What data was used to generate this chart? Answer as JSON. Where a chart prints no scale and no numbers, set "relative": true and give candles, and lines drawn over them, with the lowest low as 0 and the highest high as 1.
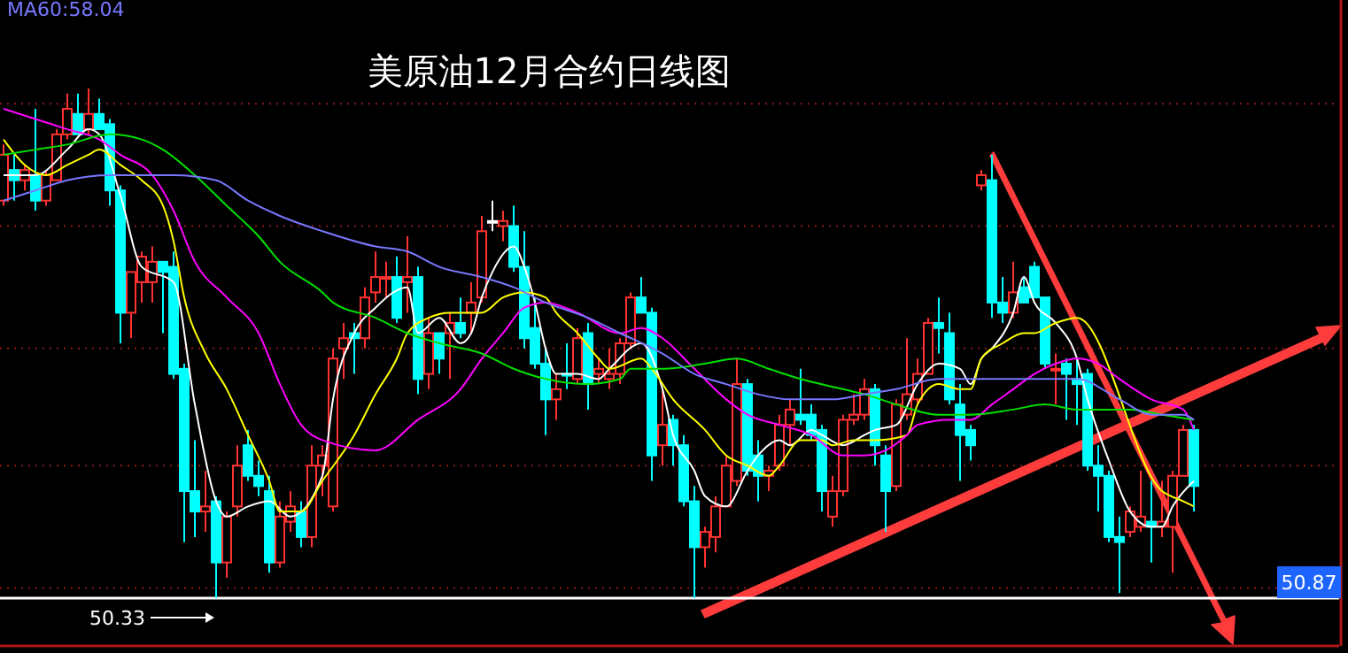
{
  "chart_data": {
    "type": "candlestick",
    "title": "美原油12月合约日线图",
    "relative": true,
    "ref_lines": [
      {
        "axis": "y",
        "value": 0.97,
        "color": "#8b1a1a",
        "line_style": "dotted"
      },
      {
        "axis": "y",
        "value": 0.73,
        "color": "#8b1a1a",
        "line_style": "dotted"
      },
      {
        "axis": "y",
        "value": 0.49,
        "color": "#8b1a1a",
        "line_style": "dotted"
      },
      {
        "axis": "y",
        "value": 0.26,
        "color": "#8b1a1a",
        "line_style": "dotted"
      },
      {
        "axis": "y",
        "value": 0.02,
        "color": "#8b1a1a",
        "line_style": "dotted"
      }
    ],
    "annotations": [
      "MA60:58.04",
      "50.33",
      "50.87"
    ],
    "categories": [
      null,
      null,
      null,
      null,
      null,
      null,
      null,
      null,
      null,
      null,
      null,
      null,
      null,
      null,
      null,
      null,
      null,
      null,
      null,
      null,
      null,
      null,
      null,
      null,
      null,
      null,
      null,
      null,
      null,
      null,
      null,
      null,
      null,
      null,
      null,
      null,
      null,
      null,
      null,
      null,
      null,
      null,
      null,
      null,
      null,
      null,
      null,
      null,
      null,
      null,
      null,
      null,
      null,
      null,
      null,
      null,
      null,
      null,
      null,
      null,
      null,
      null,
      null,
      null,
      null,
      null,
      null,
      null,
      null,
      null,
      null,
      null,
      null,
      null,
      null,
      null,
      null,
      null,
      null,
      null,
      null,
      null,
      null,
      null,
      null,
      null,
      null,
      null,
      null,
      null,
      null,
      null,
      null,
      null,
      null,
      null,
      null,
      null,
      null,
      null,
      null,
      null,
      null,
      null,
      null,
      null,
      null,
      null,
      null,
      null,
      null,
      null,
      null
    ],
    "ohlc": [
      [
        0.78,
        0.89,
        0.77,
        0.87
      ],
      [
        0.84,
        0.87,
        0.78,
        0.82
      ],
      [
        0.82,
        0.85,
        0.8,
        0.84
      ],
      [
        0.83,
        0.96,
        0.76,
        0.78
      ],
      [
        0.78,
        0.84,
        0.77,
        0.83
      ],
      [
        0.82,
        0.92,
        0.82,
        0.91
      ],
      [
        0.91,
        0.99,
        0.9,
        0.96
      ],
      [
        0.95,
        0.99,
        0.91,
        0.91
      ],
      [
        0.92,
        1.0,
        0.91,
        0.95
      ],
      [
        0.95,
        0.98,
        0.92,
        0.92
      ],
      [
        0.93,
        0.94,
        0.77,
        0.8
      ],
      [
        0.8,
        0.81,
        0.5,
        0.56
      ],
      [
        0.56,
        0.64,
        0.51,
        0.64
      ],
      [
        0.62,
        0.68,
        0.58,
        0.67
      ],
      [
        0.62,
        0.69,
        0.58,
        0.66
      ],
      [
        0.66,
        0.66,
        0.52,
        0.64
      ],
      [
        0.65,
        0.68,
        0.43,
        0.44
      ],
      [
        0.45,
        0.46,
        0.11,
        0.21
      ],
      [
        0.21,
        0.31,
        0.12,
        0.17
      ],
      [
        0.17,
        0.25,
        0.13,
        0.18
      ],
      [
        0.19,
        0.2,
        0.0,
        0.07
      ],
      [
        0.07,
        0.17,
        0.04,
        0.16
      ],
      [
        0.18,
        0.3,
        0.16,
        0.26
      ],
      [
        0.3,
        0.33,
        0.23,
        0.24
      ],
      [
        0.24,
        0.27,
        0.2,
        0.22
      ],
      [
        0.21,
        0.24,
        0.05,
        0.07
      ],
      [
        0.07,
        0.19,
        0.06,
        0.16
      ],
      [
        0.15,
        0.21,
        0.13,
        0.18
      ],
      [
        0.17,
        0.19,
        0.1,
        0.12
      ],
      [
        0.12,
        0.3,
        0.1,
        0.26
      ],
      [
        0.26,
        0.3,
        0.2,
        0.28
      ],
      [
        0.18,
        0.49,
        0.17,
        0.47
      ],
      [
        0.49,
        0.54,
        0.43,
        0.51
      ],
      [
        0.52,
        0.54,
        0.44,
        0.51
      ],
      [
        0.51,
        0.61,
        0.49,
        0.59
      ],
      [
        0.6,
        0.68,
        0.58,
        0.63
      ],
      [
        0.63,
        0.66,
        0.59,
        0.63
      ],
      [
        0.63,
        0.67,
        0.54,
        0.55
      ],
      [
        0.62,
        0.71,
        0.56,
        0.63
      ],
      [
        0.63,
        0.65,
        0.4,
        0.43
      ],
      [
        0.44,
        0.55,
        0.41,
        0.52
      ],
      [
        0.52,
        0.52,
        0.44,
        0.47
      ],
      [
        0.52,
        0.56,
        0.43,
        0.54
      ],
      [
        0.54,
        0.59,
        0.51,
        0.52
      ],
      [
        0.56,
        0.62,
        0.52,
        0.58
      ],
      [
        0.59,
        0.75,
        0.58,
        0.72
      ],
      [
        0.74,
        0.78,
        0.72,
        0.74
      ],
      [
        0.73,
        0.76,
        0.7,
        0.74
      ],
      [
        0.73,
        0.77,
        0.64,
        0.65
      ],
      [
        0.65,
        0.72,
        0.49,
        0.51
      ],
      [
        0.53,
        0.59,
        0.45,
        0.46
      ],
      [
        0.46,
        0.49,
        0.32,
        0.39
      ],
      [
        0.39,
        0.44,
        0.35,
        0.41
      ],
      [
        0.44,
        0.5,
        0.41,
        0.44
      ],
      [
        0.43,
        0.53,
        0.42,
        0.51
      ],
      [
        0.52,
        0.54,
        0.37,
        0.42
      ],
      [
        0.44,
        0.47,
        0.42,
        0.45
      ],
      [
        0.43,
        0.49,
        0.41,
        0.44
      ],
      [
        0.44,
        0.51,
        0.42,
        0.5
      ],
      [
        0.5,
        0.6,
        0.49,
        0.59
      ],
      [
        0.59,
        0.63,
        0.56,
        0.56
      ],
      [
        0.56,
        0.57,
        0.23,
        0.28
      ],
      [
        0.3,
        0.41,
        0.26,
        0.34
      ],
      [
        0.35,
        0.36,
        0.26,
        0.3
      ],
      [
        0.3,
        0.32,
        0.18,
        0.19
      ],
      [
        0.19,
        0.22,
        0.0,
        0.1
      ],
      [
        0.1,
        0.14,
        0.06,
        0.13
      ],
      [
        0.12,
        0.2,
        0.09,
        0.18
      ],
      [
        0.18,
        0.28,
        0.18,
        0.26
      ],
      [
        0.23,
        0.47,
        0.22,
        0.42
      ],
      [
        0.42,
        0.43,
        0.24,
        0.25
      ],
      [
        0.28,
        0.31,
        0.19,
        0.24
      ],
      [
        0.24,
        0.26,
        0.21,
        0.25
      ],
      [
        0.26,
        0.36,
        0.25,
        0.34
      ],
      [
        0.34,
        0.39,
        0.3,
        0.37
      ],
      [
        0.36,
        0.45,
        0.34,
        0.35
      ],
      [
        0.36,
        0.38,
        0.31,
        0.32
      ],
      [
        0.33,
        0.34,
        0.17,
        0.21
      ],
      [
        0.16,
        0.24,
        0.14,
        0.21
      ],
      [
        0.21,
        0.36,
        0.2,
        0.35
      ],
      [
        0.35,
        0.4,
        0.34,
        0.36
      ],
      [
        0.36,
        0.43,
        0.35,
        0.41
      ],
      [
        0.41,
        0.42,
        0.26,
        0.3
      ],
      [
        0.28,
        0.3,
        0.13,
        0.21
      ],
      [
        0.22,
        0.39,
        0.21,
        0.38
      ],
      [
        0.36,
        0.51,
        0.35,
        0.4
      ],
      [
        0.39,
        0.47,
        0.38,
        0.44
      ],
      [
        0.44,
        0.55,
        0.44,
        0.54
      ],
      [
        0.54,
        0.59,
        0.48,
        0.53
      ],
      [
        0.52,
        0.56,
        0.38,
        0.39
      ],
      [
        0.38,
        0.42,
        0.23,
        0.32
      ],
      [
        0.33,
        0.34,
        0.27,
        0.3
      ],
      [
        0.81,
        0.84,
        0.8,
        0.83
      ],
      [
        0.82,
        0.87,
        0.55,
        0.58
      ],
      [
        0.58,
        0.63,
        0.54,
        0.56
      ],
      [
        0.56,
        0.66,
        0.55,
        0.6
      ],
      [
        0.61,
        0.63,
        0.58,
        0.58
      ],
      [
        0.65,
        0.66,
        0.59,
        0.59
      ],
      [
        0.59,
        0.59,
        0.45,
        0.46
      ],
      [
        0.45,
        0.48,
        0.38,
        0.45
      ],
      [
        0.46,
        0.47,
        0.35,
        0.44
      ],
      [
        0.43,
        0.47,
        0.34,
        0.42
      ],
      [
        0.44,
        0.45,
        0.25,
        0.26
      ],
      [
        0.26,
        0.3,
        0.17,
        0.24
      ],
      [
        0.24,
        0.25,
        0.11,
        0.12
      ],
      [
        0.12,
        0.16,
        0.01,
        0.11
      ],
      [
        0.13,
        0.18,
        0.12,
        0.17
      ],
      [
        0.14,
        0.25,
        0.13,
        0.16
      ],
      [
        0.15,
        0.23,
        0.07,
        0.14
      ],
      [
        0.14,
        0.23,
        0.12,
        0.15
      ],
      [
        0.14,
        0.25,
        0.05,
        0.24
      ],
      [
        0.24,
        0.34,
        0.24,
        0.33
      ],
      [
        0.33,
        0.34,
        0.17,
        0.22
      ]
    ],
    "colors": [
      "#ff3232",
      "#00ffff",
      "#ff3232",
      "#00ffff",
      "#ff3232",
      "#ff3232",
      "#ff3232",
      "#00ffff",
      "#ff3232",
      "#00ffff",
      "#00ffff",
      "#00ffff",
      "#ff3232",
      "#ff3232",
      "#ff3232",
      "#00ffff",
      "#00ffff",
      "#00ffff",
      "#00ffff",
      "#ff3232",
      "#00ffff",
      "#ff3232",
      "#ff3232",
      "#00ffff",
      "#00ffff",
      "#00ffff",
      "#ff3232",
      "#ff3232",
      "#00ffff",
      "#ff3232",
      "#ff3232",
      "#ff3232",
      "#ff3232",
      "#00ffff",
      "#ff3232",
      "#ff3232",
      "#ff3232",
      "#00ffff",
      "#ff3232",
      "#00ffff",
      "#ff3232",
      "#00ffff",
      "#ff3232",
      "#00ffff",
      "#ff3232",
      "#ff3232",
      "#ffffff",
      "#ff3232",
      "#00ffff",
      "#00ffff",
      "#00ffff",
      "#00ffff",
      "#ff3232",
      "#00ffff",
      "#ff3232",
      "#00ffff",
      "#ff3232",
      "#ff3232",
      "#ff3232",
      "#ff3232",
      "#00ffff",
      "#00ffff",
      "#ff3232",
      "#00ffff",
      "#00ffff",
      "#00ffff",
      "#ff3232",
      "#ff3232",
      "#ff3232",
      "#ff3232",
      "#00ffff",
      "#00ffff",
      "#ff3232",
      "#ff3232",
      "#ff3232",
      "#00ffff",
      "#00ffff",
      "#00ffff",
      "#ff3232",
      "#ff3232",
      "#ff3232",
      "#ff3232",
      "#00ffff",
      "#00ffff",
      "#ff3232",
      "#ff3232",
      "#ff3232",
      "#ff3232",
      "#00ffff",
      "#00ffff",
      "#00ffff",
      "#00ffff",
      "#ff3232",
      "#00ffff",
      "#00ffff",
      "#ff3232",
      "#00ffff",
      "#00ffff",
      "#00ffff",
      "#ff3232",
      "#00ffff",
      "#00ffff",
      "#00ffff",
      "#00ffff",
      "#00ffff",
      "#00ffff",
      "#ff3232",
      "#ff3232",
      "#00ffff",
      "#ff3232",
      "#ff3232",
      "#ff3232",
      "#00ffff"
    ],
    "series": [
      {
        "type": "line",
        "color": "#ffffff",
        "values": [
          0.83,
          null,
          null,
          0.83,
          null,
          null,
          0.88,
          null,
          0.92,
          0.91,
          null,
          0.79,
          null,
          0.65,
          null,
          null,
          0.62,
          null,
          0.38,
          null,
          0.19,
          0.16,
          null,
          0.18,
          null,
          0.19,
          null,
          0.16,
          null,
          null,
          0.24,
          0.39,
          null,
          0.52,
          null,
          0.57,
          null,
          null,
          0.61,
          0.52,
          null,
          0.55,
          null,
          0.5,
          0.52,
          0.59,
          0.64,
          null,
          0.69,
          0.65,
          0.58,
          0.49,
          0.44,
          null,
          0.44,
          null,
          0.43,
          0.45,
          null,
          null,
          0.5,
          null,
          0.41,
          0.32,
          null,
          0.25,
          0.2,
          null,
          0.18,
          null,
          0.25,
          0.28,
          null,
          0.31,
          0.3,
          null,
          0.33,
          0.32,
          null,
          0.3,
          null,
          0.32,
          0.33,
          null,
          0.34,
          null,
          0.42,
          null,
          0.46,
          null,
          0.45,
          0.42,
          0.47,
          0.49,
          null,
          0.56,
          0.63,
          0.58,
          null,
          0.54,
          null,
          0.47,
          0.39,
          null,
          0.27,
          null,
          0.17,
          null,
          0.14,
          0.14,
          0.18,
          null,
          0.23
        ]
      },
      {
        "type": "line",
        "color": "#ffff00",
        "values": [
          0.9,
          null,
          0.85,
          null,
          0.83,
          null,
          0.85,
          null,
          0.87,
          0.88,
          null,
          0.85,
          null,
          0.82,
          null,
          0.77,
          0.7,
          0.59,
          null,
          0.48,
          null,
          0.41,
          null,
          0.32,
          null,
          0.23,
          0.17,
          null,
          0.17,
          null,
          0.23,
          null,
          null,
          0.32,
          null,
          0.4,
          null,
          0.47,
          0.52,
          null,
          0.55,
          null,
          0.56,
          null,
          null,
          0.56,
          null,
          0.59,
          null,
          0.6,
          null,
          0.59,
          0.56,
          null,
          0.52,
          null,
          0.47,
          0.45,
          null,
          null,
          0.47,
          0.45,
          null,
          0.39,
          null,
          null,
          0.33,
          null,
          0.28,
          null,
          0.26,
          null,
          0.24,
          0.26,
          null,
          0.31,
          null,
          0.31,
          0.3,
          null,
          0.31,
          null,
          0.31,
          null,
          null,
          0.32,
          0.38,
          null,
          0.42,
          null,
          0.41,
          0.41,
          0.47,
          null,
          0.5,
          null,
          0.52,
          0.52,
          null,
          0.54,
          null,
          0.55,
          null,
          null,
          null,
          null,
          null,
          null,
          null,
          0.21,
          null,
          0.19,
          0.18
        ]
      },
      {
        "type": "line",
        "color": "#ff00ff",
        "values": [
          0.96,
          null,
          null,
          0.94,
          null,
          null,
          0.92,
          null,
          null,
          0.9,
          null,
          0.87,
          null,
          null,
          0.83,
          null,
          0.76,
          null,
          0.66,
          null,
          null,
          0.59,
          null,
          null,
          0.52,
          null,
          0.42,
          null,
          0.34,
          null,
          0.31,
          null,
          null,
          null,
          null,
          0.29,
          null,
          null,
          null,
          0.35,
          null,
          null,
          null,
          0.41,
          null,
          0.47,
          null,
          0.52,
          null,
          0.57,
          null,
          0.58,
          null,
          null,
          0.56,
          null,
          null,
          null,
          0.52,
          null,
          0.53,
          null,
          0.51,
          null,
          null,
          0.45,
          null,
          null,
          0.39,
          null,
          0.36,
          null,
          null,
          0.34,
          null,
          null,
          0.32,
          null,
          null,
          0.28,
          null,
          0.28,
          null,
          0.29,
          null,
          0.32,
          0.34,
          null,
          null,
          0.35,
          null,
          0.35,
          null,
          0.38,
          null,
          0.41,
          null,
          0.44,
          null,
          0.46,
          null,
          0.47,
          null,
          0.46,
          null,
          0.43,
          null,
          null,
          0.39,
          null,
          null,
          0.37,
          0.33
        ]
      },
      {
        "type": "line",
        "color": "#00e000",
        "values": [
          0.87,
          null,
          null,
          0.88,
          null,
          null,
          0.89,
          null,
          null,
          null,
          0.91,
          null,
          null,
          0.9,
          null,
          0.88,
          null,
          null,
          0.83,
          null,
          null,
          0.77,
          null,
          null,
          0.71,
          null,
          0.66,
          null,
          null,
          null,
          0.6,
          0.58,
          null,
          null,
          null,
          0.55,
          null,
          null,
          0.52,
          null,
          null,
          0.5,
          null,
          null,
          null,
          0.48,
          null,
          null,
          0.45,
          null,
          null,
          0.43,
          null,
          null,
          null,
          0.42,
          null,
          null,
          0.43,
          0.45,
          null,
          null,
          0.45,
          null,
          null,
          null,
          0.46,
          null,
          null,
          0.47,
          null,
          null,
          0.45,
          null,
          null,
          0.43,
          null,
          null,
          null,
          0.41,
          null,
          0.4,
          null,
          null,
          0.38,
          null,
          null,
          null,
          0.36,
          null,
          null,
          0.36,
          null,
          null,
          null,
          0.37,
          null,
          null,
          0.38,
          null,
          null,
          0.37,
          null,
          null,
          null,
          null,
          0.37,
          null,
          null,
          0.36,
          null,
          null,
          0.35
        ]
      },
      {
        "type": "line",
        "color": "#7878ff",
        "values": [
          0.78,
          null,
          null,
          0.8,
          null,
          null,
          0.82,
          null,
          null,
          null,
          0.83,
          null,
          null,
          0.83,
          null,
          null,
          0.83,
          null,
          null,
          null,
          0.82,
          null,
          null,
          0.78,
          null,
          null,
          0.75,
          null,
          null,
          null,
          0.72,
          null,
          null,
          null,
          null,
          0.69,
          null,
          null,
          0.68,
          null,
          null,
          0.65,
          null,
          null,
          null,
          0.63,
          null,
          null,
          0.61,
          null,
          null,
          0.58,
          null,
          null,
          null,
          0.55,
          null,
          null,
          0.52,
          null,
          null,
          null,
          0.48,
          null,
          null,
          0.44,
          null,
          null,
          0.42,
          null,
          null,
          0.4,
          null,
          null,
          0.39,
          null,
          null,
          null,
          0.39,
          null,
          null,
          0.4,
          null,
          null,
          0.41,
          null,
          null,
          null,
          0.43,
          null,
          null,
          0.43,
          null,
          null,
          null,
          0.43,
          null,
          null,
          0.43,
          null,
          null,
          0.43,
          null,
          null,
          null,
          0.39,
          null,
          null,
          0.36,
          null,
          null,
          0.36,
          0.35
        ]
      }
    ]
  }
}
